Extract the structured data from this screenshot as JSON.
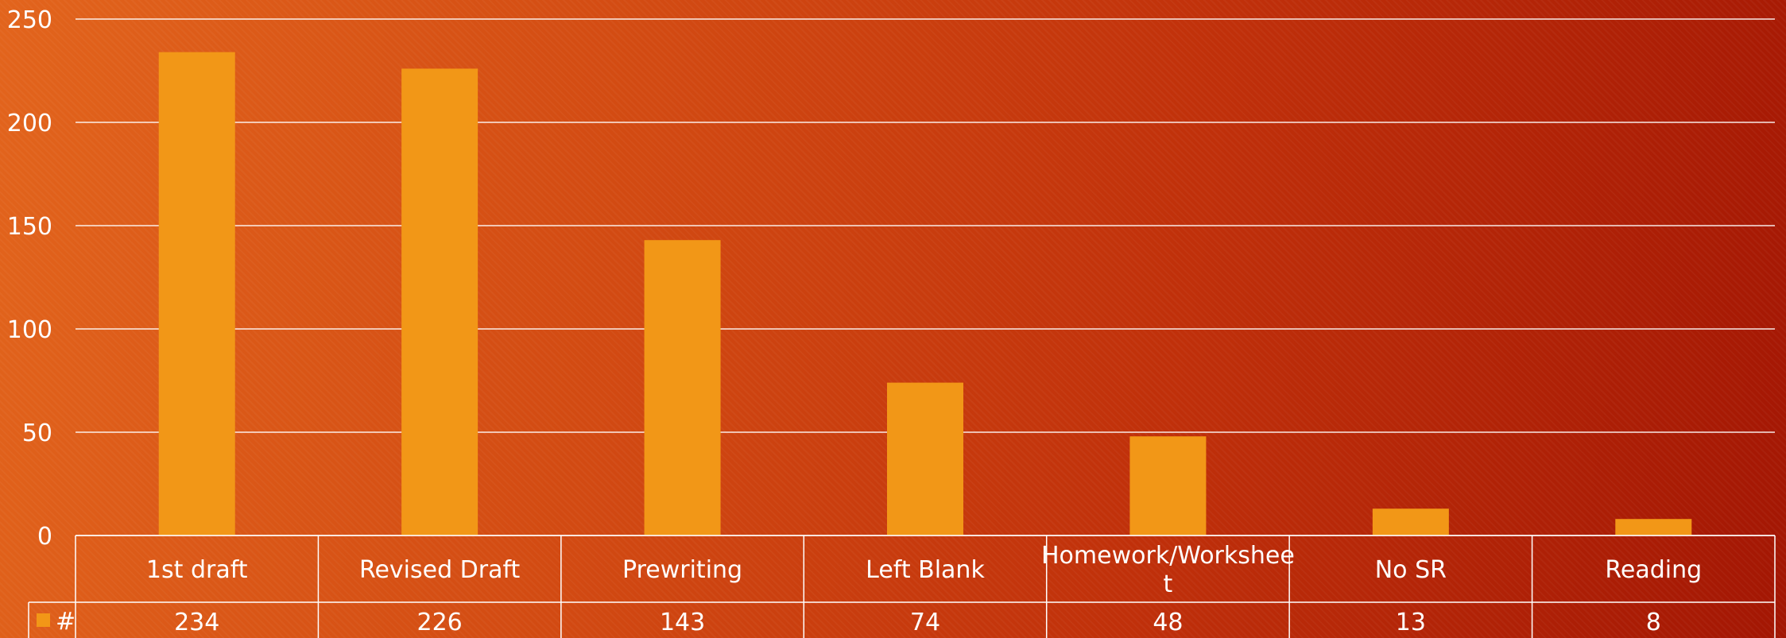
{
  "chart_data": {
    "type": "bar",
    "categories": [
      "1st draft",
      "Revised Draft",
      "Prewriting",
      "Left Blank",
      "Homework/Worksheet",
      "No SR",
      "Reading"
    ],
    "series": [
      {
        "name": "#",
        "values": [
          234,
          226,
          143,
          74,
          48,
          13,
          8
        ]
      }
    ],
    "ylim": [
      0,
      250
    ],
    "yticks": [
      0,
      50,
      100,
      150,
      200,
      250
    ],
    "grid": true,
    "legend": "data-table-row",
    "data_table": true,
    "colors": {
      "bar": "#f29717",
      "grid": "#ffffff",
      "text": "#ffffff"
    }
  }
}
